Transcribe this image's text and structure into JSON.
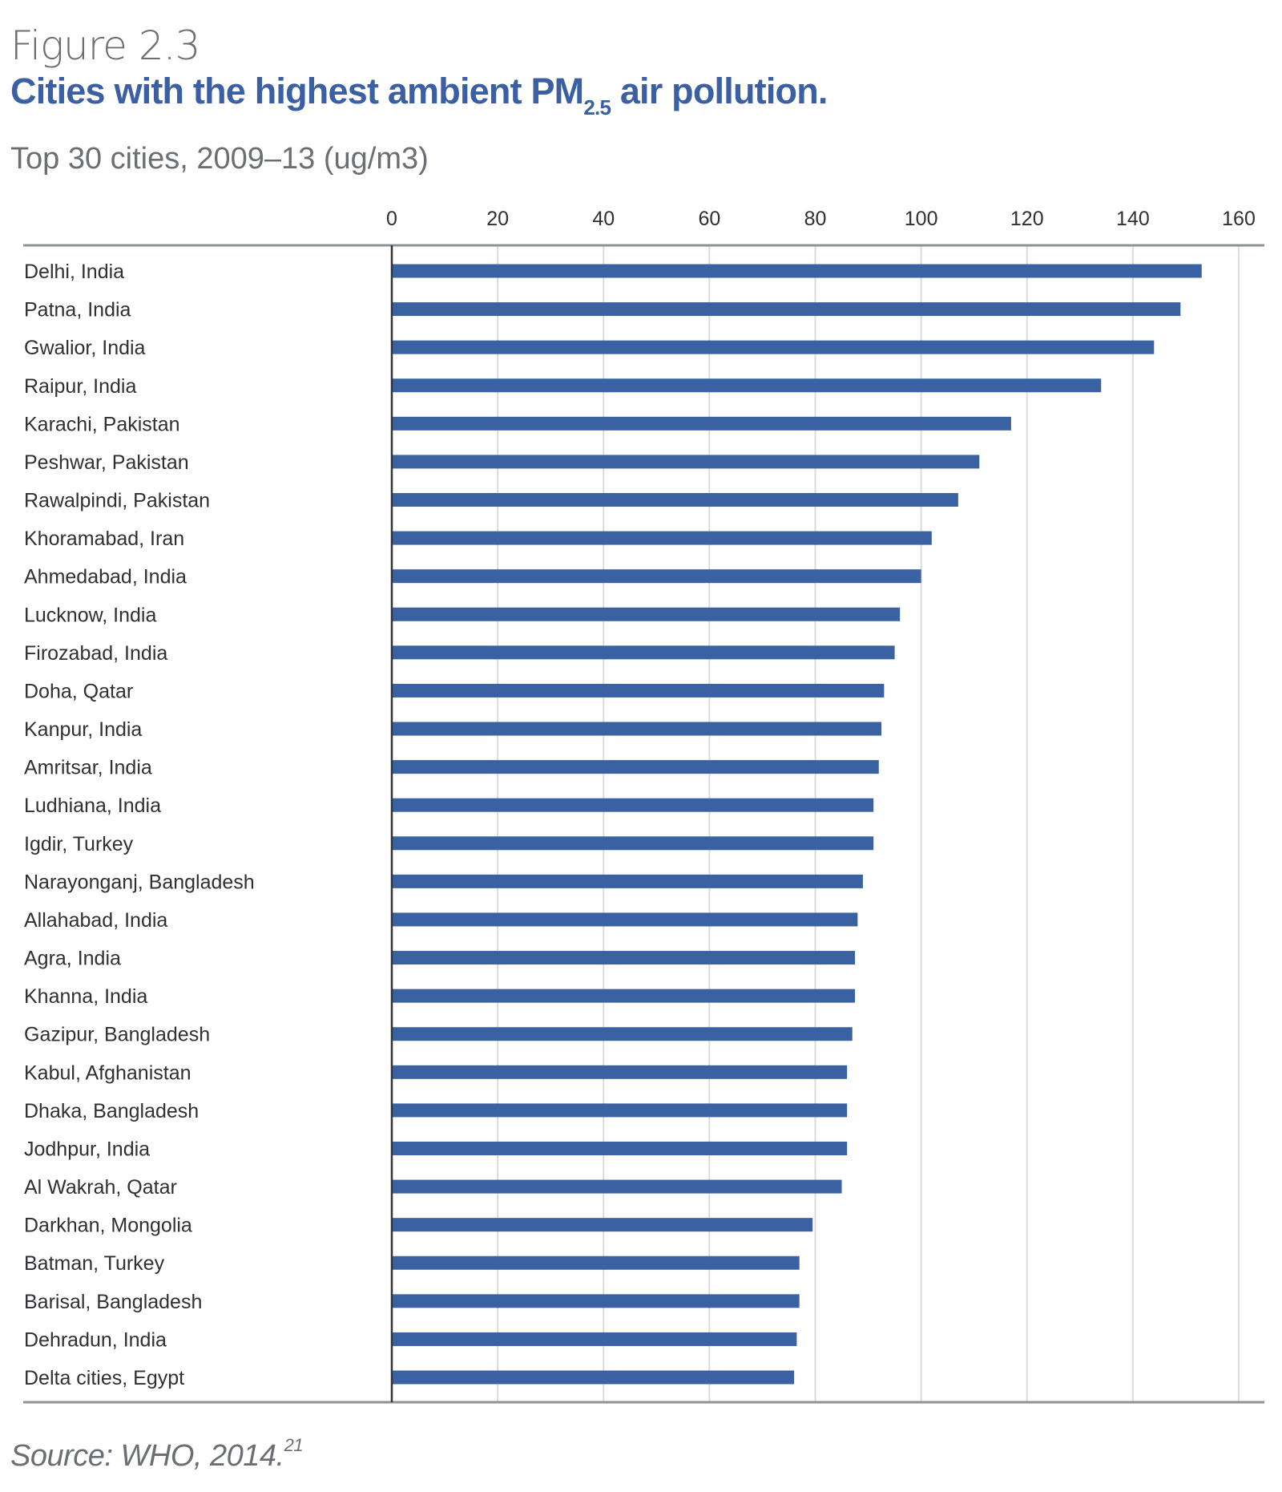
{
  "header": {
    "figure_label": "Figure 2.3",
    "title_main": "Cities with the highest ambient PM",
    "title_subscript": "2.5",
    "title_end": " air pollution.",
    "subtitle": "Top 30 cities, 2009–13 (ug/m3)"
  },
  "footer": {
    "source": "Source: WHO, 2014.",
    "source_superscript": "21"
  },
  "colors": {
    "bar": "#3a62a3",
    "title": "#3a5fa2",
    "grid": "#d9dbe0",
    "axis": "#8e9196",
    "zero_line": "#333438"
  },
  "chart_data": {
    "type": "bar",
    "orientation": "horizontal",
    "title": "Cities with the highest ambient PM2.5 air pollution.",
    "subtitle": "Top 30 cities, 2009–13 (ug/m3)",
    "xlabel": "",
    "ylabel": "",
    "xlim": [
      0,
      160
    ],
    "x_ticks": [
      0,
      20,
      40,
      60,
      80,
      100,
      120,
      140,
      160
    ],
    "x_tick_position": "top",
    "grid": true,
    "legend": "none",
    "categories": [
      "Delhi, India",
      "Patna, India",
      "Gwalior, India",
      "Raipur, India",
      "Karachi, Pakistan",
      "Peshwar, Pakistan",
      "Rawalpindi, Pakistan",
      "Khoramabad, Iran",
      "Ahmedabad, India",
      "Lucknow, India",
      "Firozabad, India",
      "Doha, Qatar",
      "Kanpur, India",
      "Amritsar, India",
      "Ludhiana, India",
      "Igdir, Turkey",
      "Narayonganj, Bangladesh",
      "Allahabad, India",
      "Agra, India",
      "Khanna, India",
      "Gazipur, Bangladesh",
      "Kabul, Afghanistan",
      "Dhaka, Bangladesh",
      "Jodhpur, India",
      "Al Wakrah, Qatar",
      "Darkhan, Mongolia",
      "Batman, Turkey",
      "Barisal, Bangladesh",
      "Dehradun, India",
      "Delta cities, Egypt"
    ],
    "values": [
      153,
      149,
      144,
      134,
      117,
      111,
      107,
      102,
      100,
      96,
      95,
      93,
      92.5,
      92,
      91,
      91,
      89,
      88,
      87.5,
      87.5,
      87,
      86,
      86,
      86,
      85,
      79.5,
      77,
      77,
      76.5,
      76
    ]
  }
}
